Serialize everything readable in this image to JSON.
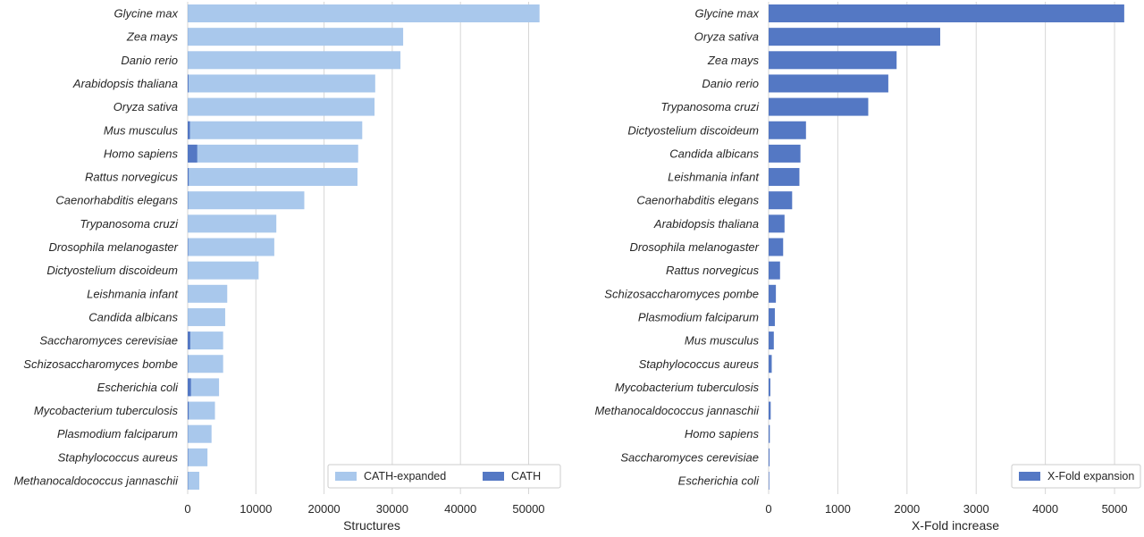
{
  "colors": {
    "cath_expanded": "#a9c8ec",
    "cath": "#5478c4",
    "xfold": "#5478c4",
    "grid": "#d6d6d6",
    "text": "#262626"
  },
  "chart_data": [
    {
      "type": "bar",
      "orientation": "horizontal",
      "stacked": "overlay",
      "categories": [
        "Glycine max",
        "Zea mays",
        "Danio rerio",
        "Arabidopsis thaliana",
        "Oryza sativa",
        "Mus musculus",
        "Homo sapiens",
        "Rattus norvegicus",
        "Caenorhabditis elegans",
        "Trypanosoma cruzi",
        "Drosophila melanogaster",
        "Dictyostelium discoideum",
        "Leishmania infant",
        "Candida albicans",
        "Saccharomyces cerevisiae",
        "Schizosaccharomyces bombe",
        "Escherichia coli",
        "Mycobacterium tuberculosis",
        "Plasmodium falciparum",
        "Staphylococcus aureus",
        "Methanocaldococcus jannaschii"
      ],
      "series": [
        {
          "name": "CATH-expanded",
          "values": [
            51600,
            31600,
            31200,
            27500,
            27400,
            25600,
            25000,
            24900,
            17100,
            13000,
            12700,
            10400,
            5800,
            5500,
            5200,
            5200,
            4600,
            4000,
            3500,
            2900,
            1700
          ]
        },
        {
          "name": "CATH",
          "values": [
            10,
            17,
            18,
            120,
            11,
            330,
            1400,
            150,
            50,
            9,
            60,
            19,
            13,
            12,
            380,
            50,
            480,
            150,
            40,
            60,
            50
          ]
        }
      ],
      "xlabel": "Structures",
      "xticks": [
        0,
        10000,
        20000,
        30000,
        40000,
        50000
      ],
      "xlim": [
        0,
        54000
      ],
      "grid": "vertical",
      "legend": "bottom-right"
    },
    {
      "type": "bar",
      "orientation": "horizontal",
      "categories": [
        "Glycine max",
        "Oryza sativa",
        "Zea mays",
        "Danio rerio",
        "Trypanosoma cruzi",
        "Dictyostelium discoideum",
        "Candida albicans",
        "Leishmania infant",
        "Caenorhabditis elegans",
        "Arabidopsis thaliana",
        "Drosophila melanogaster",
        "Rattus norvegicus",
        "Schizosaccharomyces pombe",
        "Plasmodium falciparum",
        "Mus musculus",
        "Staphylococcus aureus",
        "Mycobacterium tuberculosis",
        "Methanocaldococcus jannaschii",
        "Homo sapiens",
        "Saccharomyces cerevisiae",
        "Escherichia coli"
      ],
      "series": [
        {
          "name": "X-Fold expansion",
          "values": [
            5140,
            2480,
            1850,
            1730,
            1440,
            540,
            460,
            445,
            340,
            230,
            210,
            165,
            105,
            90,
            75,
            45,
            25,
            30,
            17,
            13,
            9
          ]
        }
      ],
      "xlabel": "X-Fold increase",
      "xticks": [
        0,
        1000,
        2000,
        3000,
        4000,
        5000
      ],
      "xlim": [
        0,
        5400
      ],
      "grid": "vertical",
      "legend": "bottom-right"
    }
  ]
}
